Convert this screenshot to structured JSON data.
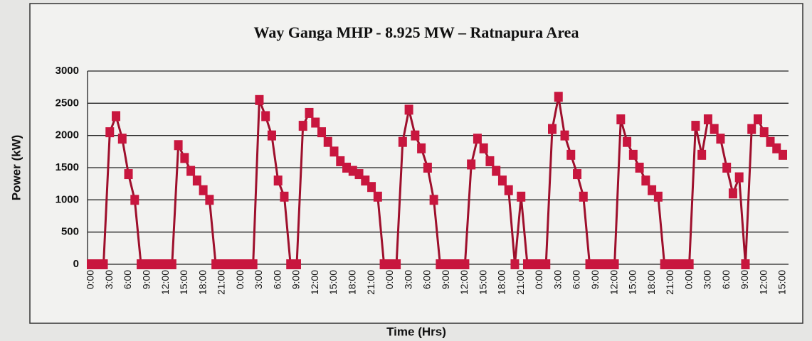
{
  "chart_data": {
    "type": "line",
    "title": "Way Ganga MHP - 8.925 MW – Ratnapura Area",
    "y_label": "Power (kW)",
    "x_label": "Time (Hrs)",
    "categories": [
      "0:00",
      null,
      null,
      "3:00",
      null,
      null,
      "6:00",
      null,
      null,
      "9:00",
      null,
      null,
      "12:00",
      null,
      null,
      "15:00",
      null,
      null,
      "18:00",
      null,
      null,
      "21:00",
      null,
      null,
      "0:00",
      null,
      null,
      "3:00",
      null,
      null,
      "6:00",
      null,
      null,
      "9:00",
      null,
      null,
      "12:00",
      null,
      null,
      "15:00",
      null,
      null,
      "18:00",
      null,
      null,
      "21:00",
      null,
      null,
      "0:00",
      null,
      null,
      "3:00",
      null,
      null,
      "6:00",
      null,
      null,
      "9:00",
      null,
      null,
      "12:00",
      null,
      null,
      "15:00",
      null,
      null,
      "18:00",
      null,
      null,
      "21:00",
      null,
      null,
      "0:00",
      null,
      null,
      "3:00",
      null,
      null,
      "6:00",
      null,
      null,
      "9:00",
      null,
      null,
      "12:00",
      null,
      null,
      "15:00",
      null,
      null,
      "18:00",
      null,
      null,
      "21:00",
      null,
      null,
      "0:00",
      null,
      null,
      "3:00",
      null,
      null,
      "6:00",
      null,
      null,
      "9:00",
      null,
      null,
      "12:00",
      null,
      null,
      "15:00"
    ],
    "values": [
      0,
      0,
      0,
      2050,
      2300,
      1950,
      1400,
      1000,
      0,
      0,
      0,
      0,
      0,
      0,
      1850,
      1650,
      1450,
      1300,
      1150,
      1000,
      0,
      0,
      0,
      0,
      0,
      0,
      0,
      2550,
      2300,
      2000,
      1300,
      1050,
      0,
      0,
      2150,
      2350,
      2200,
      2050,
      1900,
      1750,
      1600,
      1500,
      1450,
      1400,
      1300,
      1200,
      1050,
      0,
      0,
      0,
      1900,
      2400,
      2000,
      1800,
      1500,
      1000,
      0,
      0,
      0,
      0,
      0,
      1550,
      1950,
      1800,
      1600,
      1450,
      1300,
      1150,
      0,
      1050,
      0,
      0,
      0,
      0,
      2100,
      2600,
      2000,
      1700,
      1400,
      1050,
      0,
      0,
      0,
      0,
      0,
      2250,
      1900,
      1700,
      1500,
      1300,
      1150,
      1050,
      0,
      0,
      0,
      0,
      0,
      2150,
      1700,
      2250,
      2100,
      1950,
      1500,
      1100,
      1350,
      0,
      2100,
      2250,
      2050,
      1900,
      1800,
      1700
    ],
    "color": "#c8163e",
    "line_color": "#9e0f2c",
    "ylim": [
      0,
      3000
    ],
    "yticks": [
      0,
      500,
      1000,
      1500,
      2000,
      2500,
      3000
    ],
    "grid": true
  }
}
